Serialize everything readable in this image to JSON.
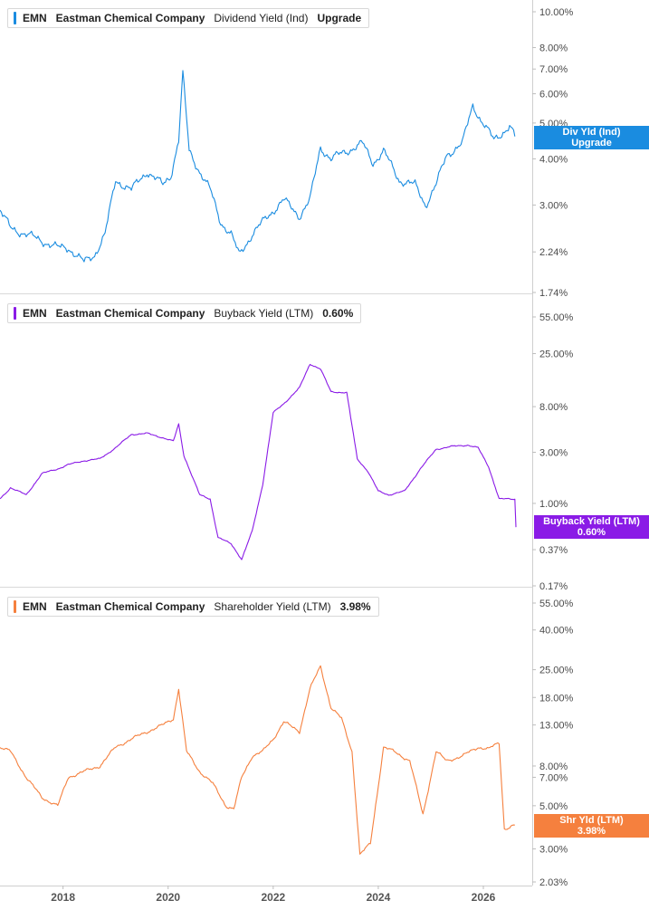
{
  "ticker": "EMN",
  "company": "Eastman Chemical Company",
  "x_tick_labels": [
    "2018",
    "2020",
    "2022",
    "2024",
    "2026"
  ],
  "panels": [
    {
      "metric": "Dividend Yield (Ind)",
      "header_value": "Upgrade",
      "flag_line1": "Div Yld (Ind)",
      "flag_line2": "Upgrade",
      "color": "#1a8ce0"
    },
    {
      "metric": "Buyback Yield (LTM)",
      "header_value": "0.60%",
      "flag_line1": "Buyback Yield (LTM)",
      "flag_line2": "0.60%",
      "color": "#8a1be6"
    },
    {
      "metric": "Shareholder Yield (LTM)",
      "header_value": "3.98%",
      "flag_line1": "Shr Yld (LTM)",
      "flag_line2": "3.98%",
      "color": "#f5803e"
    }
  ],
  "chart_data": [
    {
      "type": "line",
      "title": "EMN Eastman Chemical Company Dividend Yield (Ind)",
      "scale": "log",
      "ylim": [
        1.74,
        10.0
      ],
      "ytick_labels": [
        "10.00%",
        "8.00%",
        "7.00%",
        "6.00%",
        "5.00%",
        "4.00%",
        "3.00%",
        "2.24%",
        "1.74%"
      ],
      "ytick_values": [
        10.0,
        8.0,
        7.0,
        6.0,
        5.0,
        4.0,
        3.0,
        2.24,
        1.74
      ],
      "series": [
        {
          "x": [
            2016.8,
            2017.0,
            2017.3,
            2017.6,
            2017.9,
            2018.1,
            2018.4,
            2018.6,
            2018.8,
            2019.0,
            2019.3,
            2019.6,
            2019.9,
            2020.05,
            2020.2,
            2020.28,
            2020.4,
            2020.6,
            2020.8,
            2021.0,
            2021.2,
            2021.35,
            2021.6,
            2021.9,
            2022.2,
            2022.5,
            2022.7,
            2022.9,
            2023.1,
            2023.4,
            2023.7,
            2023.9,
            2024.1,
            2024.4,
            2024.7,
            2024.9,
            2025.1,
            2025.3,
            2025.6,
            2025.8,
            2025.95,
            2026.2,
            2026.5,
            2026.6
          ],
          "y": [
            2.9,
            2.6,
            2.5,
            2.4,
            2.3,
            2.3,
            2.1,
            2.2,
            2.5,
            3.5,
            3.3,
            3.7,
            3.4,
            3.6,
            4.5,
            6.8,
            4.2,
            3.7,
            3.3,
            2.7,
            2.5,
            2.2,
            2.5,
            2.8,
            3.1,
            2.8,
            3.1,
            4.3,
            4.0,
            4.2,
            4.4,
            3.9,
            4.2,
            3.5,
            3.4,
            3.0,
            3.4,
            4.1,
            4.4,
            5.6,
            5.1,
            4.5,
            4.9,
            4.6
          ]
        }
      ]
    },
    {
      "type": "line",
      "title": "EMN Eastman Chemical Company Buyback Yield (LTM)",
      "scale": "log",
      "ylim": [
        0.17,
        55.0
      ],
      "ytick_labels": [
        "55.00%",
        "25.00%",
        "8.00%",
        "3.00%",
        "1.00%",
        "0.37%",
        "0.17%"
      ],
      "ytick_values": [
        55.0,
        25.0,
        8.0,
        3.0,
        1.0,
        0.37,
        0.17
      ],
      "series": [
        {
          "x": [
            2016.8,
            2017.0,
            2017.3,
            2017.6,
            2017.9,
            2018.1,
            2018.4,
            2018.7,
            2019.0,
            2019.3,
            2019.6,
            2019.9,
            2020.1,
            2020.2,
            2020.3,
            2020.6,
            2020.8,
            2020.95,
            2021.2,
            2021.4,
            2021.6,
            2021.8,
            2022.0,
            2022.2,
            2022.5,
            2022.7,
            2022.9,
            2023.1,
            2023.4,
            2023.6,
            2023.8,
            2024.0,
            2024.2,
            2024.5,
            2024.8,
            2025.1,
            2025.4,
            2025.7,
            2025.9,
            2026.1,
            2026.3,
            2026.5,
            2026.6,
            2026.62
          ],
          "y": [
            1.1,
            1.4,
            1.2,
            1.9,
            2.1,
            2.3,
            2.5,
            2.6,
            3.3,
            4.4,
            4.5,
            4.1,
            3.8,
            5.5,
            2.8,
            1.2,
            1.1,
            0.48,
            0.42,
            0.3,
            0.55,
            1.5,
            7.0,
            8.5,
            12.0,
            20.0,
            18.0,
            11.0,
            10.8,
            2.6,
            2.0,
            1.3,
            1.2,
            1.3,
            2.1,
            3.2,
            3.4,
            3.5,
            3.3,
            2.2,
            1.1,
            1.1,
            1.1,
            0.6
          ]
        }
      ]
    },
    {
      "type": "line",
      "title": "EMN Eastman Chemical Company Shareholder Yield (LTM)",
      "scale": "log",
      "ylim": [
        2.03,
        55.0
      ],
      "ytick_labels": [
        "55.00%",
        "40.00%",
        "25.00%",
        "18.00%",
        "13.00%",
        "8.00%",
        "7.00%",
        "5.00%",
        "3.00%",
        "2.03%"
      ],
      "ytick_values": [
        55.0,
        40.0,
        25.0,
        18.0,
        13.0,
        8.0,
        7.0,
        5.0,
        3.0,
        2.03
      ],
      "series": [
        {
          "x": [
            2016.8,
            2017.0,
            2017.3,
            2017.6,
            2017.9,
            2018.1,
            2018.4,
            2018.7,
            2019.0,
            2019.3,
            2019.6,
            2019.9,
            2020.1,
            2020.2,
            2020.35,
            2020.6,
            2020.85,
            2021.1,
            2021.25,
            2021.4,
            2021.6,
            2021.8,
            2022.0,
            2022.2,
            2022.5,
            2022.7,
            2022.9,
            2023.1,
            2023.3,
            2023.5,
            2023.65,
            2023.85,
            2024.1,
            2024.3,
            2024.6,
            2024.85,
            2025.1,
            2025.3,
            2025.6,
            2025.9,
            2026.1,
            2026.3,
            2026.4,
            2026.6
          ],
          "y": [
            10.0,
            9.5,
            7.0,
            5.5,
            5.0,
            7.0,
            7.5,
            8.0,
            10.0,
            11.0,
            12.0,
            13.0,
            14.0,
            20.0,
            9.5,
            7.5,
            6.5,
            5.0,
            4.8,
            7.0,
            9.0,
            9.5,
            11.0,
            13.5,
            12.0,
            20.0,
            26.0,
            16.0,
            14.0,
            9.5,
            2.8,
            3.2,
            10.0,
            9.5,
            8.5,
            4.5,
            9.5,
            8.5,
            9.0,
            10.0,
            9.8,
            10.5,
            3.8,
            3.98
          ]
        }
      ]
    }
  ]
}
